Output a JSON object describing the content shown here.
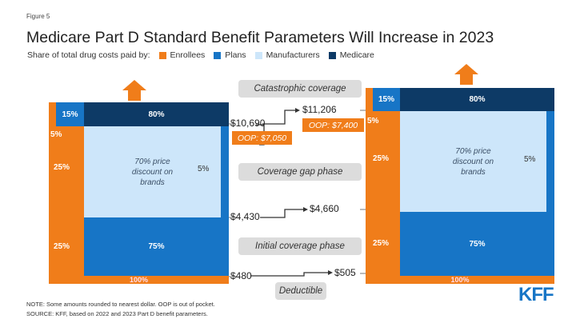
{
  "figure_label": "Figure 5",
  "title": "Medicare Part D Standard Benefit Parameters Will Increase in 2023",
  "legend": {
    "label": "Share of total drug costs paid by:",
    "items": [
      {
        "name": "Enrollees",
        "color": "#f07d1a"
      },
      {
        "name": "Plans",
        "color": "#1775c6"
      },
      {
        "name": "Manufacturers",
        "color": "#cde6fa"
      },
      {
        "name": "Medicare",
        "color": "#0d3a66"
      }
    ]
  },
  "chart_2022": {
    "cat_plans": "15%",
    "cat_medicare": "80%",
    "cat_enrollees": "5%",
    "gap_enrollees": "25%",
    "gap_manufacturers": "70% price discount on brands",
    "gap_plans": "5%",
    "icp_enrollees": "25%",
    "icp_plans": "75%",
    "deductible_enrollees": "100%"
  },
  "chart_2023": {
    "cat_plans": "15%",
    "cat_medicare": "80%",
    "cat_enrollees": "5%",
    "gap_enrollees": "25%",
    "gap_manufacturers": "70% price discount on brands",
    "gap_plans": "5%",
    "icp_enrollees": "25%",
    "icp_plans": "75%",
    "deductible_enrollees": "100%"
  },
  "phases": {
    "catastrophic": "Catastrophic coverage",
    "gap": "Coverage gap phase",
    "initial": "Initial coverage phase",
    "deductible": "Deductible"
  },
  "thresholds": {
    "catastrophic_2022": "$10,690",
    "catastrophic_2023": "$11,206",
    "oop_2022": "OOP: $7,050",
    "oop_2023": "OOP: $7,400",
    "gap_2022": "$4,430",
    "gap_2023": "$4,660",
    "deductible_2022": "$480",
    "deductible_2023": "$505"
  },
  "notes": [
    "NOTE: Some amounts rounded to nearest dollar. OOP is out of pocket.",
    "SOURCE: KFF, based on 2022 and 2023 Part D benefit parameters."
  ],
  "logo": "KFF"
}
